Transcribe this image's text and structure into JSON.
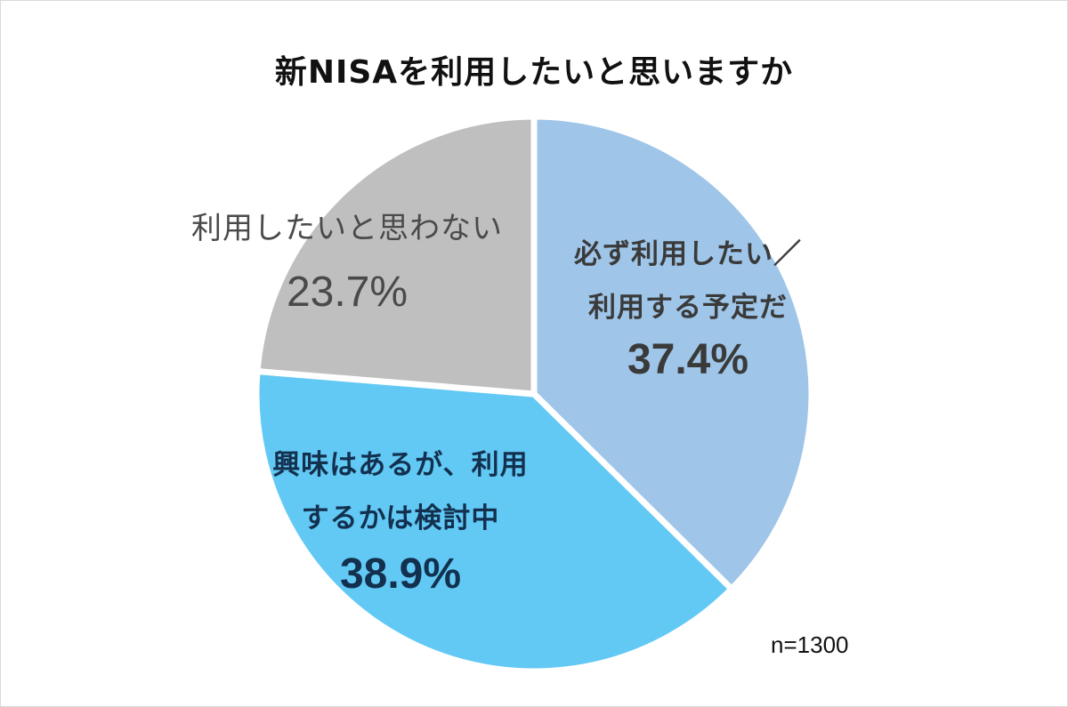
{
  "chart_data": {
    "type": "pie",
    "title": "新NISAを利用したいと思いますか",
    "note": "n=1300",
    "slices": [
      {
        "label_lines": [
          "必ず利用したい／",
          "利用する予定だ"
        ],
        "value": 37.4,
        "value_label": "37.4%",
        "color": "#9fc5e8",
        "text_color": "#3a3a3a",
        "bold": true
      },
      {
        "label_lines": [
          "興味はあるが、利用",
          "するかは検討中"
        ],
        "value": 38.9,
        "value_label": "38.9%",
        "color": "#62c9f5",
        "text_color": "#13304e",
        "bold": true
      },
      {
        "label_lines": [
          "利用したいと思わない"
        ],
        "value": 23.7,
        "value_label": "23.7%",
        "color": "#bfbfbf",
        "text_color": "#4a4a4a",
        "bold": false
      }
    ]
  }
}
